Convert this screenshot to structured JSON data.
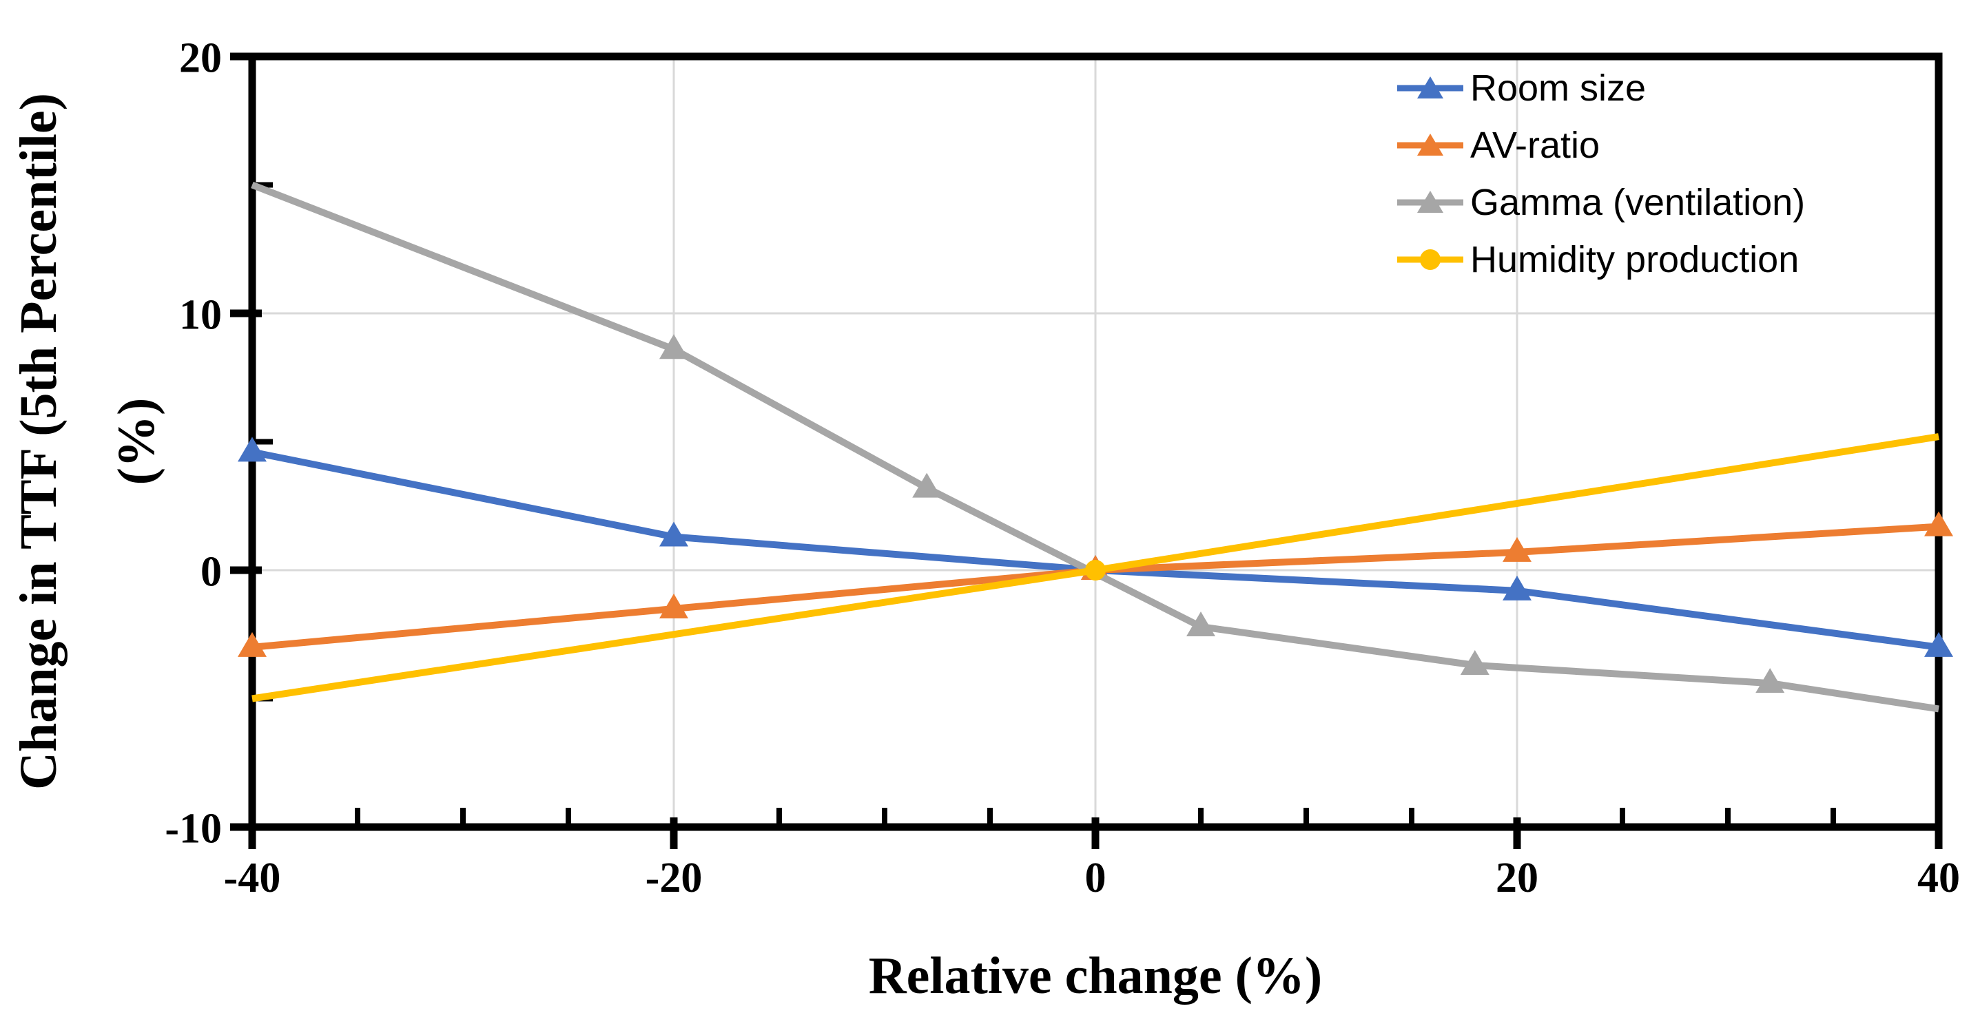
{
  "chart_data": {
    "type": "line",
    "title": "",
    "xlabel": "Relative change (%)",
    "ylabel": "Change in TTF (5th Percentile)",
    "ylabel_line2": "(%)",
    "xlim": [
      -40,
      40
    ],
    "ylim": [
      -10,
      20
    ],
    "x_major_ticks": [
      -40,
      -20,
      0,
      20,
      40
    ],
    "y_major_ticks": [
      -10,
      0,
      10,
      20
    ],
    "x_minor_step": 5,
    "y_minor_step": 5,
    "grid": "major",
    "grid_color": "#D9D9D9",
    "axis_color": "#000000",
    "legend_position": "top-right-inside",
    "series": [
      {
        "name": "Room size",
        "color": "#4472C4",
        "marker": "triangle",
        "points": [
          [
            -40,
            4.6
          ],
          [
            -20,
            1.3
          ],
          [
            0,
            0
          ],
          [
            20,
            -0.8
          ],
          [
            40,
            -3.0
          ]
        ],
        "marker_at": [
          0,
          1,
          2,
          3,
          4
        ]
      },
      {
        "name": "AV-ratio",
        "color": "#ED7D31",
        "marker": "triangle",
        "points": [
          [
            -40,
            -3.0
          ],
          [
            -20,
            -1.5
          ],
          [
            0,
            0
          ],
          [
            20,
            0.7
          ],
          [
            40,
            1.7
          ]
        ],
        "marker_at": [
          0,
          1,
          2,
          3,
          4
        ]
      },
      {
        "name": "Gamma (ventilation)",
        "color": "#A6A6A6",
        "marker": "triangle",
        "points": [
          [
            -40,
            15.0
          ],
          [
            -20,
            8.6
          ],
          [
            -8,
            3.2
          ],
          [
            5,
            -2.2
          ],
          [
            18,
            -3.7
          ],
          [
            32,
            -4.4
          ],
          [
            40,
            -5.4
          ]
        ],
        "marker_at": [
          1,
          2,
          3,
          4,
          5
        ]
      },
      {
        "name": "Humidity production",
        "color": "#FFC000",
        "marker": "circle",
        "points": [
          [
            -40,
            -5.0
          ],
          [
            0,
            0
          ],
          [
            40,
            5.2
          ]
        ],
        "marker_at": [
          1
        ]
      }
    ]
  }
}
